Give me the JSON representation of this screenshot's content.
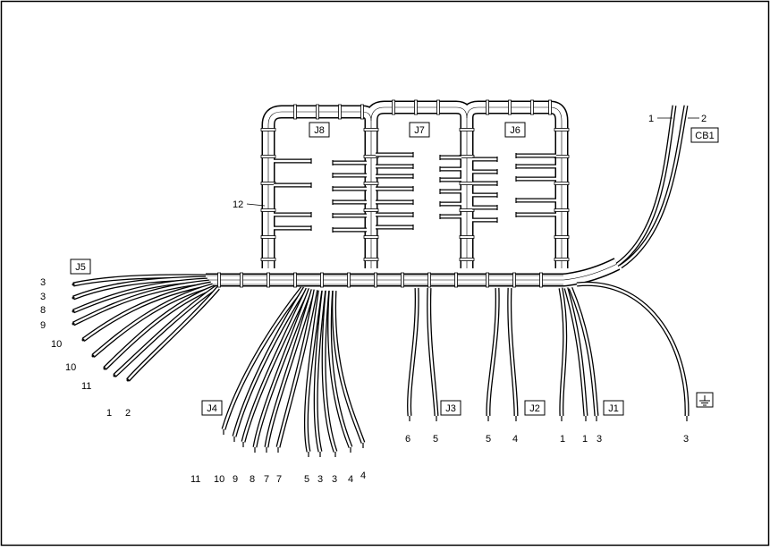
{
  "diagram": {
    "connectors": {
      "J8": "J8",
      "J7": "J7",
      "J6": "J6",
      "J5": "J5",
      "J4": "J4",
      "J3": "J3",
      "J2": "J2",
      "J1": "J1",
      "CB1": "CB1"
    },
    "labels": {
      "harness_12": "12",
      "j5": [
        "3",
        "3",
        "8",
        "9",
        "10",
        "10",
        "11",
        "1",
        "2"
      ],
      "j4": [
        "11",
        "10",
        "9",
        "8",
        "7",
        "7",
        "5",
        "3",
        "3",
        "4",
        "4"
      ],
      "j3": [
        "6",
        "5"
      ],
      "j2": [
        "5",
        "4"
      ],
      "j1": [
        "1",
        "1",
        "3"
      ],
      "ground": "3",
      "cb1": [
        "1",
        "2"
      ]
    },
    "icons": {
      "ground": "ground-symbol-icon"
    }
  }
}
